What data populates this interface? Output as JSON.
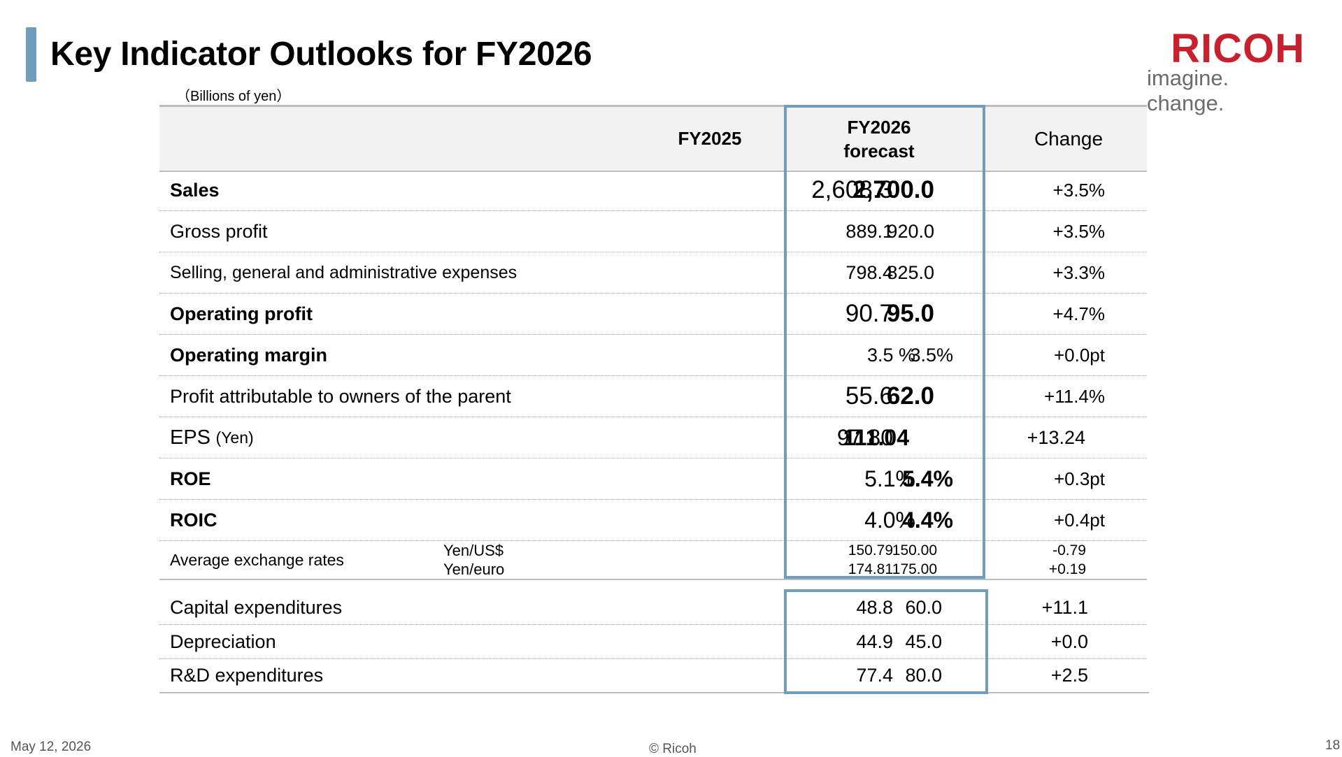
{
  "title": "Key Indicator Outlooks for FY2026",
  "brand": {
    "name": "RICOH",
    "tagline": "imagine. change.",
    "color": "#c8202f",
    "accent": "#6f9dbc"
  },
  "unit": "（Billions of yen）",
  "header": {
    "col1": "FY2025",
    "col2_line1": "FY2026",
    "col2_line2": "forecast",
    "col3": "Change"
  },
  "rows": [
    {
      "label": "Sales",
      "fy2025": "2,608.3",
      "fy2026": "2,700.0",
      "change": "+3.5%"
    },
    {
      "label": "Gross profit",
      "fy2025": "889.1",
      "fy2026": "920.0",
      "change": "+3.5%"
    },
    {
      "label": "Selling, general and administrative expenses",
      "fy2025": "798.4",
      "fy2026": "825.0",
      "change": "+3.3%"
    },
    {
      "label": "Operating profit",
      "fy2025": "90.7",
      "fy2026": "95.0",
      "change": "+4.7%"
    },
    {
      "label": "Operating margin",
      "fy2025": "3.5 %",
      "fy2026": "3.5%",
      "change": "+0.0pt"
    },
    {
      "label": "Profit attributable to owners of the parent",
      "fy2025": "55.6",
      "fy2026": "62.0",
      "change": "+11.4%"
    },
    {
      "label": "EPS",
      "label_suffix": "(Yen)",
      "fy2025": "97.80",
      "fy2026": "111.04",
      "change": "+13.24"
    },
    {
      "label": "ROE",
      "fy2025": "5.1%",
      "fy2026": "5.4%",
      "change": "+0.3pt"
    },
    {
      "label": "ROIC",
      "fy2025": "4.0%",
      "fy2026": "4.4%",
      "change": "+0.4pt"
    }
  ],
  "fx": {
    "label": "Average exchange rates",
    "usd": {
      "label": "Yen/US$",
      "fy2025": "150.79",
      "fy2026": "150.00",
      "change": "-0.79"
    },
    "eur": {
      "label": "Yen/euro",
      "fy2025": "174.81",
      "fy2026": "175.00",
      "change": "+0.19"
    }
  },
  "capex_rows": [
    {
      "label": "Capital expenditures",
      "fy2025": "48.8",
      "fy2026": "60.0",
      "change": "+11.1"
    },
    {
      "label": "Depreciation",
      "fy2025": "44.9",
      "fy2026": "45.0",
      "change": "+0.0"
    },
    {
      "label": "R&D expenditures",
      "fy2025": "77.4",
      "fy2026": "80.0",
      "change": "+2.5"
    }
  ],
  "footer": {
    "date": "May 12, 2026",
    "copyright": "© Ricoh",
    "page": "18"
  }
}
